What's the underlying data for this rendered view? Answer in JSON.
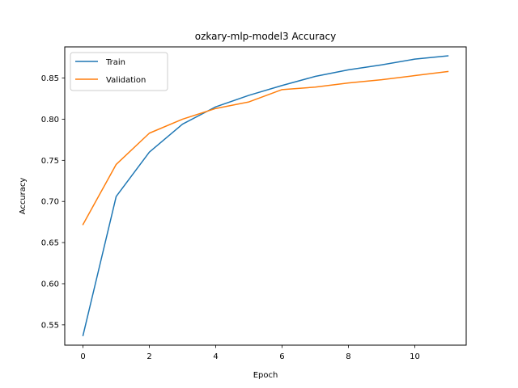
{
  "chart_data": {
    "type": "line",
    "title": "ozkary-mlp-model3 Accuracy",
    "xlabel": "Epoch",
    "ylabel": "Accuracy",
    "x": [
      0,
      1,
      2,
      3,
      4,
      5,
      6,
      7,
      8,
      9,
      10,
      11
    ],
    "xlim": [
      -0.55,
      11.55
    ],
    "ylim": [
      0.5253,
      0.8879
    ],
    "xticks": [
      0,
      2,
      4,
      6,
      8,
      10
    ],
    "yticks": [
      0.55,
      0.6,
      0.65,
      0.7,
      0.75,
      0.8,
      0.85
    ],
    "xtick_labels": [
      "0",
      "2",
      "4",
      "6",
      "8",
      "10"
    ],
    "ytick_labels": [
      "0.55",
      "0.60",
      "0.65",
      "0.70",
      "0.75",
      "0.80",
      "0.85"
    ],
    "grid": false,
    "legend_position": "top-left",
    "series": [
      {
        "name": "Train",
        "color": "#1f77b4",
        "values": [
          0.537,
          0.706,
          0.76,
          0.794,
          0.815,
          0.829,
          0.841,
          0.852,
          0.86,
          0.866,
          0.873,
          0.877
        ]
      },
      {
        "name": "Validation",
        "color": "#ff7f0e",
        "values": [
          0.672,
          0.745,
          0.783,
          0.8,
          0.813,
          0.821,
          0.836,
          0.839,
          0.844,
          0.848,
          0.853,
          0.858
        ]
      }
    ]
  }
}
